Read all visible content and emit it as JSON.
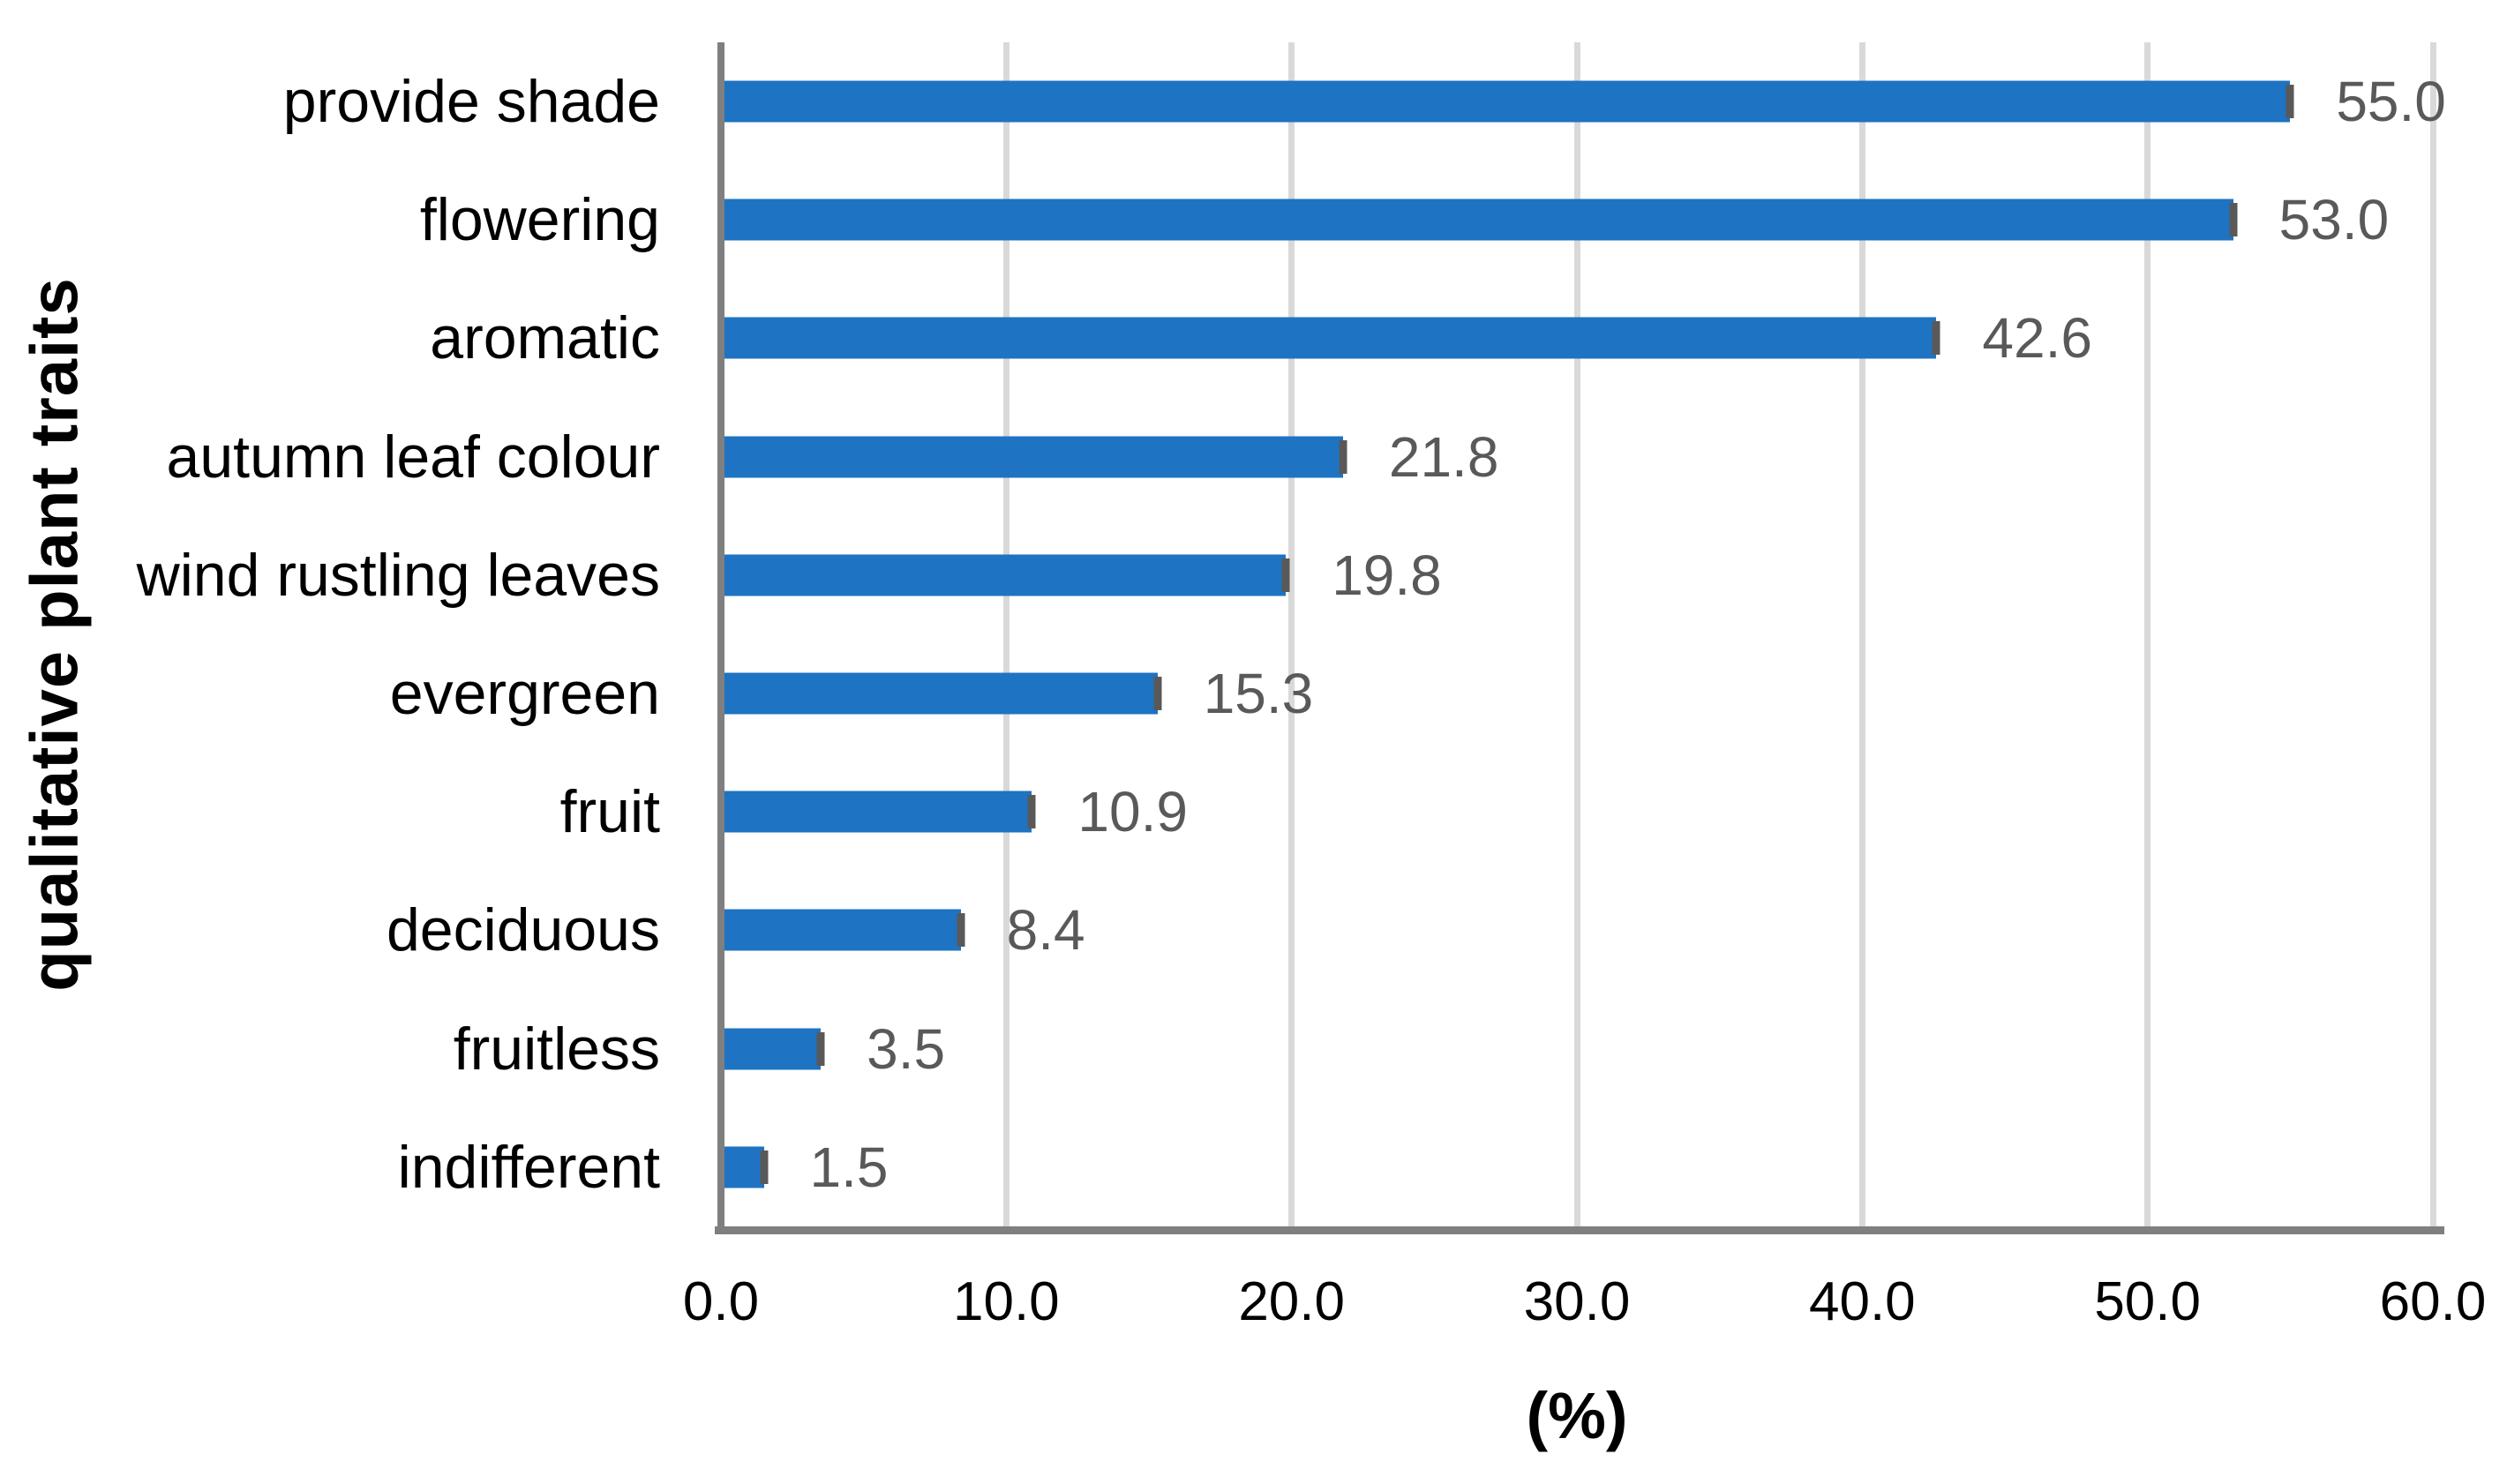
{
  "chart_data": {
    "type": "bar",
    "orientation": "horizontal",
    "title": "",
    "xlabel": "(%)",
    "ylabel": "qualitative plant traits",
    "categories": [
      "provide shade",
      "flowering",
      "aromatic",
      "autumn leaf colour",
      "wind rustling leaves",
      "evergreen",
      "fruit",
      "deciduous",
      "fruitless",
      "indifferent"
    ],
    "values": [
      55.0,
      53.0,
      42.6,
      21.8,
      19.8,
      15.3,
      10.9,
      8.4,
      3.5,
      1.5
    ],
    "value_labels": [
      "55.0",
      "53.0",
      "42.6",
      "21.8",
      "19.8",
      "15.3",
      "10.9",
      "8.4",
      "3.5",
      "1.5"
    ],
    "xlim": [
      0,
      60
    ],
    "xticks": [
      0,
      10,
      20,
      30,
      40,
      50,
      60
    ],
    "xtick_labels": [
      "0.0",
      "10.0",
      "20.0",
      "30.0",
      "40.0",
      "50.0",
      "60.0"
    ],
    "grid": "vertical-gridlines-on",
    "legend": "none",
    "colors": {
      "bar": "#1e73c2",
      "error_cap": "#595959",
      "value_label": "#595959",
      "axis_line": "#7f7f7f",
      "gridline": "#d9d9d9",
      "category_label": "#000000",
      "tick_label": "#000000"
    }
  }
}
